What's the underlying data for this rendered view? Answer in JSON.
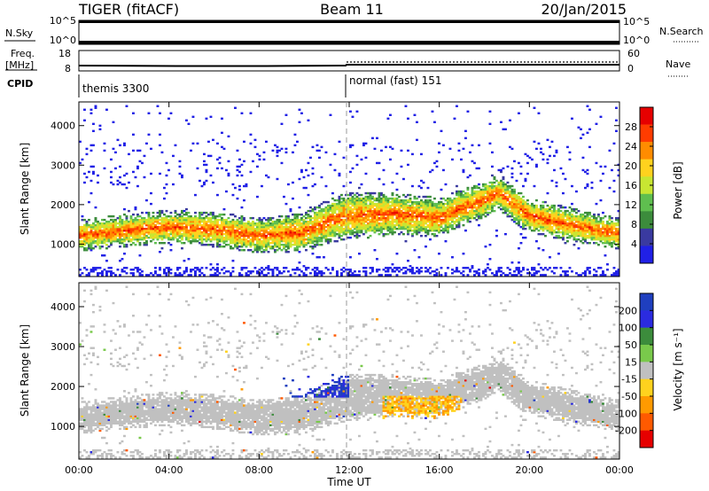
{
  "header": {
    "station": "TIGER (fitACF)",
    "beam": "Beam 11",
    "date": "20/Jan/2015"
  },
  "strips": {
    "nsky_label": "N.Sky",
    "nsky_ticks": [
      "10^5",
      "10^0"
    ],
    "nsearch_label": "N.Search",
    "nsearch_ticks": [
      "10^5",
      "10^0"
    ],
    "freq_label_line1": "Freq.",
    "freq_label_line2": "[MHz]",
    "freq_ticks": [
      "18",
      "8"
    ],
    "nave_label": "Nave",
    "nave_ticks": [
      "60",
      "0"
    ],
    "cpid_label": "CPID",
    "cpid_left": "themis 3300",
    "cpid_right": "normal (fast) 151"
  },
  "colors": {
    "power": [
      "#2020e6",
      "#3a3aa0",
      "#3c8c3c",
      "#5fbf4f",
      "#c8e632",
      "#ffd21e",
      "#ff8c00",
      "#ff3c00",
      "#e60000"
    ],
    "velocity": [
      "#1f3fbf",
      "#2b2be0",
      "#3c8c3c",
      "#79c94b",
      "#c0c0c0",
      "#ffd21e",
      "#ff9a00",
      "#ff5a00",
      "#e60000"
    ]
  },
  "chart_data": [
    {
      "type": "heatmap",
      "panel": "power",
      "xlabel": "",
      "ylabel": "Slant Range [km]",
      "xlim": [
        0,
        24
      ],
      "ylim": [
        180,
        4600
      ],
      "yticks": [
        "1000",
        "2000",
        "3000",
        "4000"
      ],
      "colorbar": {
        "label": "Power [dB]",
        "ticks": [
          "4",
          "8",
          "12",
          "16",
          "20",
          "24",
          "28"
        ],
        "range": [
          0,
          32
        ]
      },
      "band_center_km": {
        "x": [
          0,
          2,
          4,
          6,
          8,
          10,
          11,
          12,
          14,
          16,
          17,
          18,
          18.6,
          20,
          22,
          24
        ],
        "y": [
          1200,
          1320,
          1420,
          1350,
          1200,
          1280,
          1550,
          1700,
          1750,
          1650,
          1900,
          2100,
          2300,
          1700,
          1450,
          1250
        ]
      },
      "band_width_km": {
        "x": [
          0,
          4,
          8,
          10,
          12,
          16,
          18,
          20,
          24
        ],
        "y": [
          500,
          550,
          600,
          700,
          900,
          700,
          600,
          600,
          500
        ]
      }
    },
    {
      "type": "heatmap",
      "panel": "velocity",
      "xlabel": "Time UT",
      "ylabel": "Slant Range [km]",
      "xlim": [
        0,
        24
      ],
      "ylim": [
        180,
        4600
      ],
      "xticks": [
        "00:00",
        "04:00",
        "08:00",
        "12:00",
        "16:00",
        "20:00",
        "00:00"
      ],
      "yticks": [
        "1000",
        "2000",
        "3000",
        "4000"
      ],
      "colorbar": {
        "label": "Velocity [m s⁻¹]",
        "ticks": [
          "200",
          "100",
          "50",
          "15",
          "-15",
          "-50",
          "-100",
          "-200"
        ],
        "range": [
          -250,
          250
        ]
      },
      "features": [
        {
          "name": "positive velocity patch",
          "x_range": [
            8,
            12
          ],
          "y_range_km": [
            1700,
            2300
          ],
          "value": 200
        },
        {
          "name": "negative velocity patch",
          "x_range": [
            13.5,
            17
          ],
          "y_range_km": [
            1150,
            1750
          ],
          "value": -80
        }
      ]
    }
  ]
}
